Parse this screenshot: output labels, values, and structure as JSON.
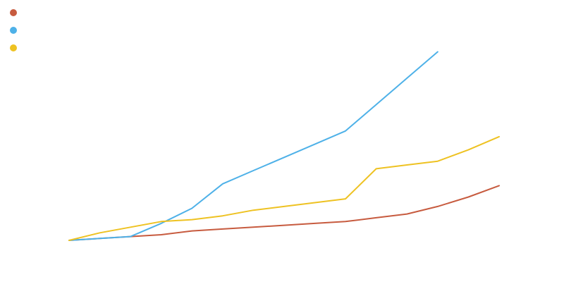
{
  "chart_data": {
    "type": "line",
    "title": "",
    "xlabel": "",
    "ylabel": "",
    "x": [
      0,
      1,
      2,
      3,
      4,
      5,
      6,
      7,
      8,
      9,
      10,
      11,
      12,
      13,
      14
    ],
    "xlim": [
      0,
      14
    ],
    "ylim": [
      0,
      120
    ],
    "grid": false,
    "legend": "top-left",
    "series": [
      {
        "color": "#c75b3f",
        "values": [
          0,
          1,
          2,
          3,
          5,
          6,
          7,
          8,
          9,
          10,
          12,
          14,
          18,
          23,
          29
        ]
      },
      {
        "color": "#4eb1e8",
        "values": [
          0,
          1,
          2,
          9,
          17,
          30,
          37,
          44,
          51,
          58,
          72,
          86,
          100,
          null,
          null
        ]
      },
      {
        "color": "#eec222",
        "values": [
          0,
          4,
          7,
          10,
          11,
          13,
          16,
          18,
          20,
          22,
          38,
          40,
          42,
          48,
          55
        ]
      }
    ]
  }
}
